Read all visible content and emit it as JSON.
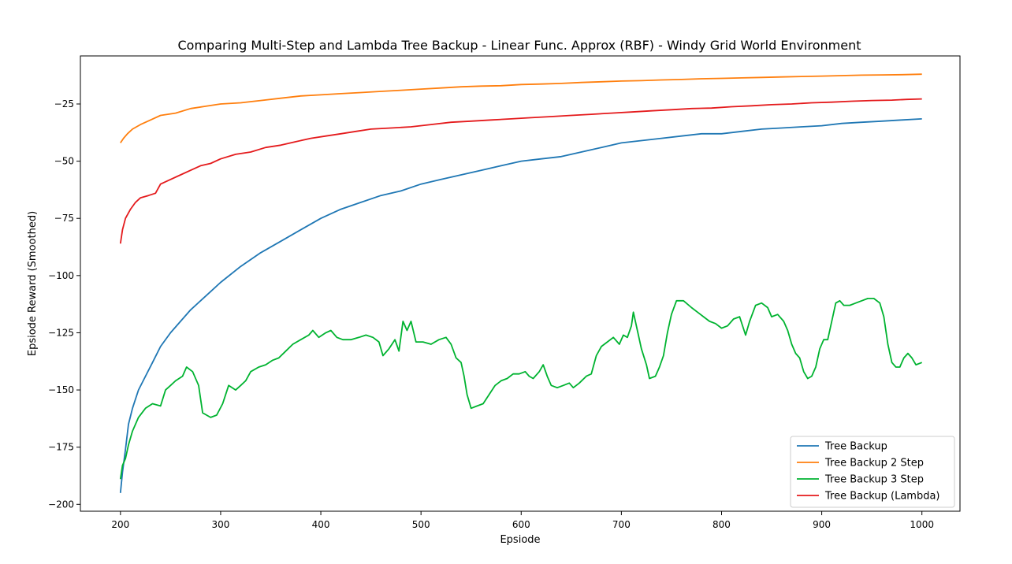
{
  "chart_data": {
    "type": "line",
    "title": "Comparing Multi-Step and Lambda Tree Backup - Linear Func. Approx (RBF) - Windy Grid World Environment",
    "xlabel": "Epsiode",
    "ylabel": "Epsiode Reward (Smoothed)",
    "xlim": [
      160,
      1038
    ],
    "ylim": [
      -203,
      -4
    ],
    "xticks": [
      200,
      300,
      400,
      500,
      600,
      700,
      800,
      900,
      1000
    ],
    "yticks": [
      -200,
      -175,
      -150,
      -125,
      -100,
      -75,
      -50,
      -25
    ],
    "grid": false,
    "legend_position": "bottom-right",
    "series": [
      {
        "name": "Tree Backup",
        "color": "#1f77b4",
        "points": [
          [
            200,
            -195
          ],
          [
            202,
            -186
          ],
          [
            205,
            -176
          ],
          [
            208,
            -165
          ],
          [
            212,
            -158
          ],
          [
            218,
            -150
          ],
          [
            225,
            -144
          ],
          [
            232,
            -138
          ],
          [
            240,
            -131
          ],
          [
            250,
            -125
          ],
          [
            260,
            -120
          ],
          [
            270,
            -115
          ],
          [
            280,
            -111
          ],
          [
            290,
            -107
          ],
          [
            300,
            -103
          ],
          [
            320,
            -96
          ],
          [
            340,
            -90
          ],
          [
            360,
            -85
          ],
          [
            380,
            -80
          ],
          [
            400,
            -75
          ],
          [
            420,
            -71
          ],
          [
            440,
            -68
          ],
          [
            460,
            -65
          ],
          [
            480,
            -63
          ],
          [
            500,
            -60
          ],
          [
            520,
            -58
          ],
          [
            540,
            -56
          ],
          [
            560,
            -54
          ],
          [
            580,
            -52
          ],
          [
            600,
            -50
          ],
          [
            620,
            -49
          ],
          [
            640,
            -48
          ],
          [
            660,
            -46
          ],
          [
            680,
            -44
          ],
          [
            700,
            -42
          ],
          [
            720,
            -41
          ],
          [
            740,
            -40
          ],
          [
            760,
            -39
          ],
          [
            780,
            -38
          ],
          [
            800,
            -38
          ],
          [
            820,
            -37
          ],
          [
            840,
            -36
          ],
          [
            860,
            -35.5
          ],
          [
            880,
            -35
          ],
          [
            900,
            -34.5
          ],
          [
            920,
            -33.5
          ],
          [
            940,
            -33
          ],
          [
            960,
            -32.5
          ],
          [
            980,
            -32
          ],
          [
            1000,
            -31.5
          ]
        ]
      },
      {
        "name": "Tree Backup 2 Step",
        "color": "#ff7f0e",
        "points": [
          [
            200,
            -42
          ],
          [
            203,
            -40
          ],
          [
            207,
            -38
          ],
          [
            212,
            -36
          ],
          [
            220,
            -34
          ],
          [
            230,
            -32
          ],
          [
            240,
            -30
          ],
          [
            255,
            -29
          ],
          [
            270,
            -27
          ],
          [
            285,
            -26
          ],
          [
            300,
            -25
          ],
          [
            320,
            -24.5
          ],
          [
            340,
            -23.5
          ],
          [
            360,
            -22.5
          ],
          [
            380,
            -21.5
          ],
          [
            400,
            -21
          ],
          [
            420,
            -20.5
          ],
          [
            440,
            -20
          ],
          [
            460,
            -19.5
          ],
          [
            480,
            -19
          ],
          [
            500,
            -18.5
          ],
          [
            520,
            -18
          ],
          [
            540,
            -17.5
          ],
          [
            560,
            -17.2
          ],
          [
            580,
            -17
          ],
          [
            600,
            -16.5
          ],
          [
            620,
            -16.3
          ],
          [
            640,
            -16
          ],
          [
            660,
            -15.6
          ],
          [
            680,
            -15.3
          ],
          [
            700,
            -15
          ],
          [
            720,
            -14.8
          ],
          [
            740,
            -14.5
          ],
          [
            760,
            -14.3
          ],
          [
            780,
            -14
          ],
          [
            800,
            -13.8
          ],
          [
            820,
            -13.6
          ],
          [
            840,
            -13.4
          ],
          [
            860,
            -13.2
          ],
          [
            880,
            -13
          ],
          [
            900,
            -12.8
          ],
          [
            920,
            -12.6
          ],
          [
            940,
            -12.4
          ],
          [
            960,
            -12.3
          ],
          [
            980,
            -12.2
          ],
          [
            1000,
            -12
          ]
        ]
      },
      {
        "name": "Tree Backup 3 Step",
        "color": "#00b330",
        "points": [
          [
            200,
            -189
          ],
          [
            202,
            -183
          ],
          [
            205,
            -180
          ],
          [
            208,
            -174
          ],
          [
            212,
            -168
          ],
          [
            218,
            -162
          ],
          [
            225,
            -158
          ],
          [
            232,
            -156
          ],
          [
            240,
            -157
          ],
          [
            245,
            -150
          ],
          [
            250,
            -148
          ],
          [
            255,
            -146
          ],
          [
            262,
            -144
          ],
          [
            266,
            -140
          ],
          [
            272,
            -142
          ],
          [
            278,
            -148
          ],
          [
            282,
            -160
          ],
          [
            290,
            -162
          ],
          [
            296,
            -161
          ],
          [
            302,
            -156
          ],
          [
            308,
            -148
          ],
          [
            315,
            -150
          ],
          [
            320,
            -148
          ],
          [
            325,
            -146
          ],
          [
            330,
            -142
          ],
          [
            338,
            -140
          ],
          [
            345,
            -139
          ],
          [
            352,
            -137
          ],
          [
            358,
            -136
          ],
          [
            365,
            -133
          ],
          [
            372,
            -130
          ],
          [
            380,
            -128
          ],
          [
            388,
            -126
          ],
          [
            392,
            -124
          ],
          [
            398,
            -127
          ],
          [
            405,
            -125
          ],
          [
            410,
            -124
          ],
          [
            416,
            -127
          ],
          [
            422,
            -128
          ],
          [
            430,
            -128
          ],
          [
            438,
            -127
          ],
          [
            445,
            -126
          ],
          [
            452,
            -127
          ],
          [
            458,
            -129
          ],
          [
            462,
            -135
          ],
          [
            468,
            -132
          ],
          [
            474,
            -128
          ],
          [
            478,
            -133
          ],
          [
            482,
            -120
          ],
          [
            486,
            -124
          ],
          [
            490,
            -120
          ],
          [
            495,
            -129
          ],
          [
            502,
            -129
          ],
          [
            510,
            -130
          ],
          [
            518,
            -128
          ],
          [
            525,
            -127
          ],
          [
            530,
            -130
          ],
          [
            535,
            -136
          ],
          [
            540,
            -138
          ],
          [
            543,
            -144
          ],
          [
            546,
            -152
          ],
          [
            550,
            -158
          ],
          [
            556,
            -157
          ],
          [
            562,
            -156
          ],
          [
            568,
            -152
          ],
          [
            574,
            -148
          ],
          [
            580,
            -146
          ],
          [
            586,
            -145
          ],
          [
            592,
            -143
          ],
          [
            598,
            -143
          ],
          [
            604,
            -142
          ],
          [
            608,
            -144
          ],
          [
            612,
            -145
          ],
          [
            618,
            -142
          ],
          [
            622,
            -139
          ],
          [
            626,
            -144
          ],
          [
            630,
            -148
          ],
          [
            636,
            -149
          ],
          [
            642,
            -148
          ],
          [
            648,
            -147
          ],
          [
            652,
            -149
          ],
          [
            658,
            -147
          ],
          [
            665,
            -144
          ],
          [
            670,
            -143
          ],
          [
            675,
            -135
          ],
          [
            680,
            -131
          ],
          [
            686,
            -129
          ],
          [
            692,
            -127
          ],
          [
            698,
            -130
          ],
          [
            702,
            -126
          ],
          [
            706,
            -127
          ],
          [
            710,
            -122
          ],
          [
            712,
            -116
          ],
          [
            716,
            -124
          ],
          [
            720,
            -132
          ],
          [
            725,
            -139
          ],
          [
            728,
            -145
          ],
          [
            734,
            -144
          ],
          [
            738,
            -140
          ],
          [
            742,
            -135
          ],
          [
            746,
            -125
          ],
          [
            750,
            -117
          ],
          [
            755,
            -111
          ],
          [
            762,
            -111
          ],
          [
            770,
            -114
          ],
          [
            776,
            -116
          ],
          [
            782,
            -118
          ],
          [
            788,
            -120
          ],
          [
            794,
            -121
          ],
          [
            800,
            -123
          ],
          [
            806,
            -122
          ],
          [
            812,
            -119
          ],
          [
            818,
            -118
          ],
          [
            824,
            -126
          ],
          [
            828,
            -120
          ],
          [
            834,
            -113
          ],
          [
            840,
            -112
          ],
          [
            846,
            -114
          ],
          [
            850,
            -118
          ],
          [
            856,
            -117
          ],
          [
            862,
            -120
          ],
          [
            866,
            -124
          ],
          [
            870,
            -130
          ],
          [
            874,
            -134
          ],
          [
            878,
            -136
          ],
          [
            882,
            -142
          ],
          [
            886,
            -145
          ],
          [
            890,
            -144
          ],
          [
            894,
            -140
          ],
          [
            898,
            -132
          ],
          [
            902,
            -128
          ],
          [
            906,
            -128
          ],
          [
            910,
            -120
          ],
          [
            914,
            -112
          ],
          [
            918,
            -111
          ],
          [
            922,
            -113
          ],
          [
            928,
            -113
          ],
          [
            934,
            -112
          ],
          [
            940,
            -111
          ],
          [
            946,
            -110
          ],
          [
            952,
            -110
          ],
          [
            958,
            -112
          ],
          [
            962,
            -118
          ],
          [
            966,
            -130
          ],
          [
            970,
            -138
          ],
          [
            974,
            -140
          ],
          [
            978,
            -140
          ],
          [
            982,
            -136
          ],
          [
            986,
            -134
          ],
          [
            990,
            -136
          ],
          [
            994,
            -139
          ],
          [
            1000,
            -138
          ]
        ]
      },
      {
        "name": "Tree Backup (Lambda)",
        "color": "#e41a1c",
        "points": [
          [
            200,
            -86
          ],
          [
            202,
            -80
          ],
          [
            205,
            -75
          ],
          [
            210,
            -71
          ],
          [
            215,
            -68
          ],
          [
            220,
            -66
          ],
          [
            228,
            -65
          ],
          [
            235,
            -64
          ],
          [
            240,
            -60
          ],
          [
            250,
            -58
          ],
          [
            260,
            -56
          ],
          [
            270,
            -54
          ],
          [
            280,
            -52
          ],
          [
            290,
            -51
          ],
          [
            300,
            -49
          ],
          [
            315,
            -47
          ],
          [
            330,
            -46
          ],
          [
            345,
            -44
          ],
          [
            360,
            -43
          ],
          [
            375,
            -41.5
          ],
          [
            390,
            -40
          ],
          [
            405,
            -39
          ],
          [
            420,
            -38
          ],
          [
            435,
            -37
          ],
          [
            450,
            -36
          ],
          [
            470,
            -35.5
          ],
          [
            490,
            -35
          ],
          [
            510,
            -34
          ],
          [
            530,
            -33
          ],
          [
            550,
            -32.5
          ],
          [
            570,
            -32
          ],
          [
            590,
            -31.5
          ],
          [
            610,
            -31
          ],
          [
            630,
            -30.5
          ],
          [
            650,
            -30
          ],
          [
            670,
            -29.5
          ],
          [
            690,
            -29
          ],
          [
            710,
            -28.5
          ],
          [
            730,
            -28
          ],
          [
            750,
            -27.5
          ],
          [
            770,
            -27
          ],
          [
            790,
            -26.8
          ],
          [
            810,
            -26.2
          ],
          [
            830,
            -25.8
          ],
          [
            850,
            -25.3
          ],
          [
            870,
            -25
          ],
          [
            890,
            -24.5
          ],
          [
            910,
            -24.2
          ],
          [
            930,
            -23.8
          ],
          [
            950,
            -23.5
          ],
          [
            970,
            -23.3
          ],
          [
            985,
            -23
          ],
          [
            1000,
            -22.8
          ]
        ]
      }
    ]
  }
}
